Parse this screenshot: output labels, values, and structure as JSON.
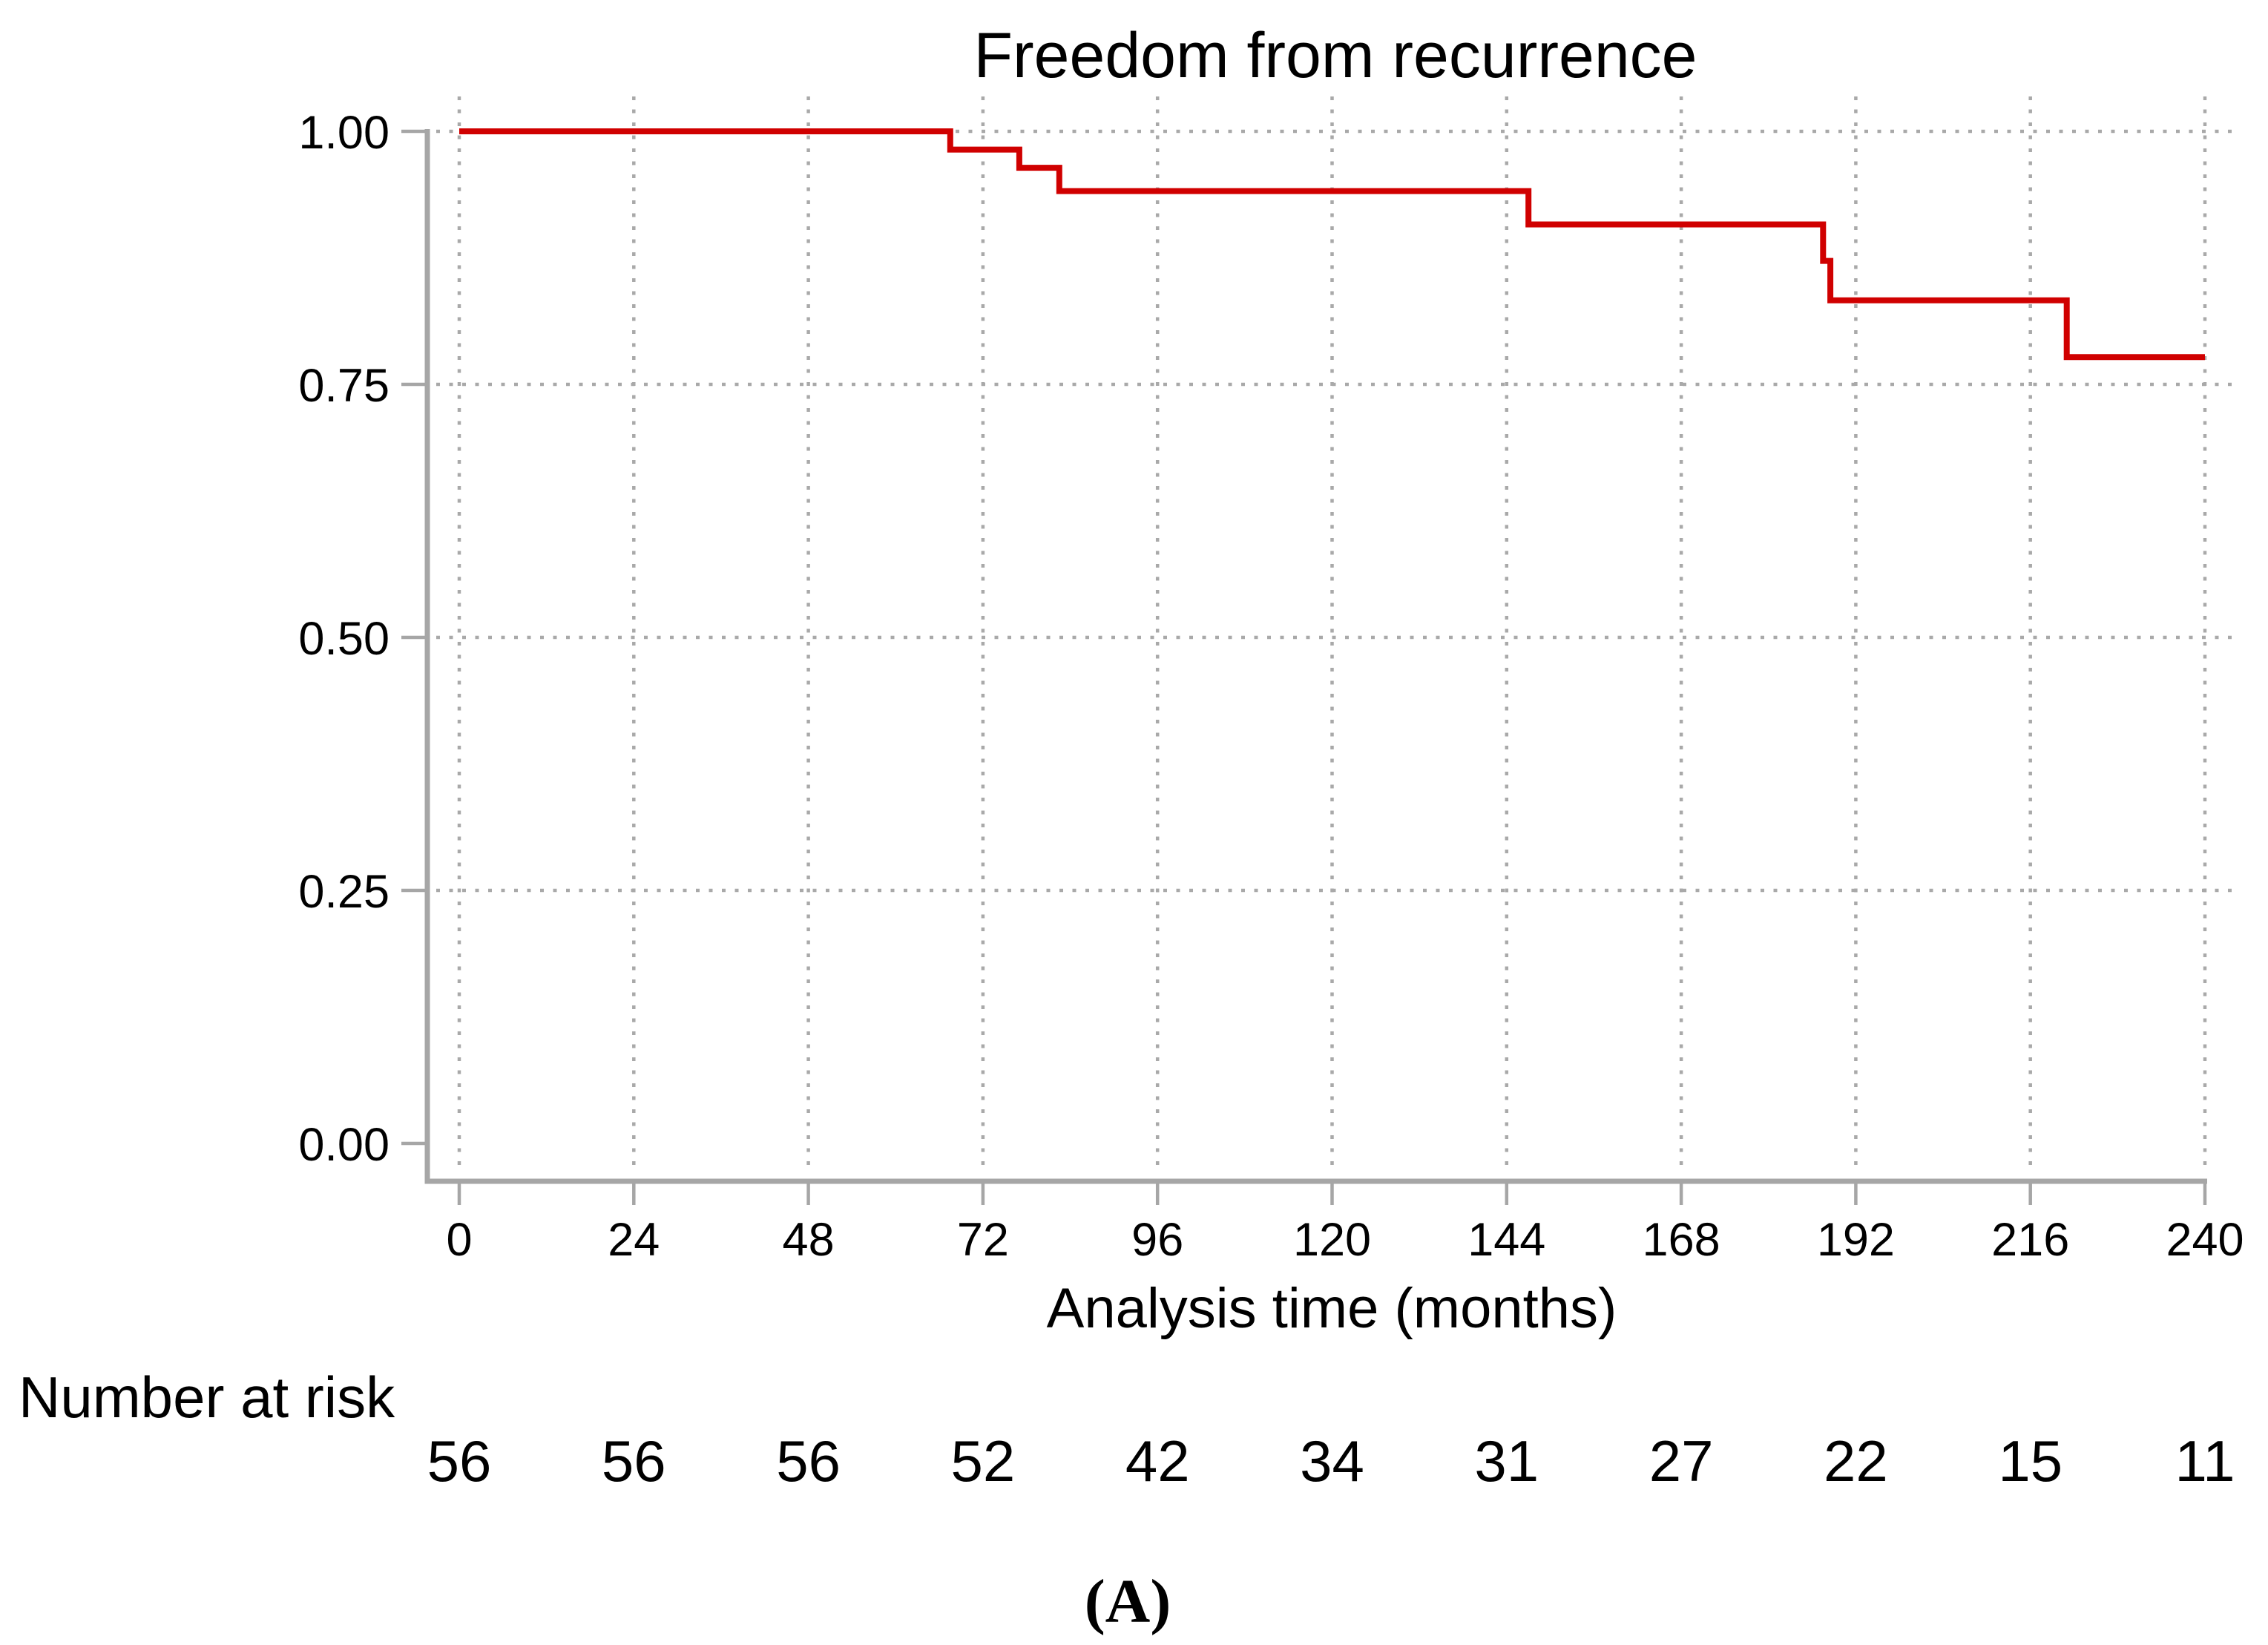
{
  "figure": {
    "background": "#ffffff"
  },
  "chart_data": {
    "type": "line",
    "subtype": "kaplan-meier-step-curve",
    "title": "Freedom from recurrence",
    "xlabel": "Analysis time (months)",
    "ylabel": "",
    "xlim": [
      0,
      240
    ],
    "ylim": [
      0.0,
      1.0
    ],
    "x_ticks": [
      0,
      24,
      48,
      72,
      96,
      120,
      144,
      168,
      192,
      216,
      240
    ],
    "y_ticks": [
      0.0,
      0.25,
      0.5,
      0.75,
      1.0
    ],
    "y_tick_labels": [
      "0.00",
      "0.25",
      "0.50",
      "0.75",
      "1.00"
    ],
    "grid": "dotted gray; vertical at every x tick, horizontal at 0.25, 0.50, 0.75, 1.00 (none at 0.00)",
    "legend": "none",
    "series": [
      {
        "name": "Freedom from recurrence",
        "color": "#d00000",
        "step_points": [
          [
            0,
            1.0
          ],
          [
            67.5,
            1.0
          ],
          [
            67.5,
            0.982
          ],
          [
            77,
            0.982
          ],
          [
            77,
            0.964
          ],
          [
            82.5,
            0.964
          ],
          [
            82.5,
            0.941
          ],
          [
            147,
            0.941
          ],
          [
            147,
            0.908
          ],
          [
            187.5,
            0.908
          ],
          [
            187.5,
            0.872
          ],
          [
            188.5,
            0.872
          ],
          [
            188.5,
            0.833
          ],
          [
            221,
            0.833
          ],
          [
            221,
            0.777
          ],
          [
            240,
            0.777
          ]
        ]
      }
    ],
    "number_at_risk": {
      "label": "Number at risk",
      "times": [
        0,
        24,
        48,
        72,
        96,
        120,
        144,
        168,
        192,
        216,
        240
      ],
      "values": [
        56,
        56,
        56,
        52,
        42,
        34,
        31,
        27,
        22,
        15,
        11
      ]
    },
    "panel_label": "(A)"
  },
  "colors": {
    "curve": "#d00000",
    "axis": "#a6a6a6",
    "grid": "#a9a9a9",
    "text": "#000000",
    "background": "#ffffff"
  }
}
